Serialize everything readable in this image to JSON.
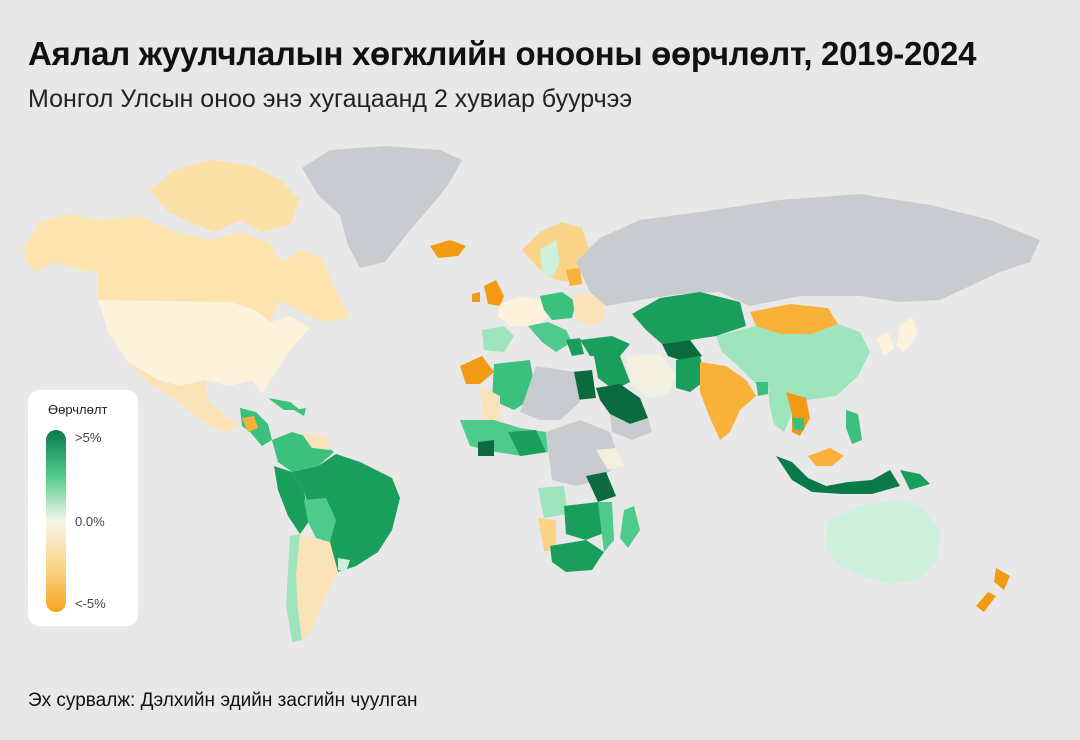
{
  "title": "Аялал жуулчлалын хөгжлийн онооны өөрчлөлт, 2019-2024",
  "subtitle": "Монгол Улсын оноо энэ хугацаанд 2 хувиар буурчээ",
  "legend": {
    "title": "Өөрчлөлт",
    "ticks": [
      ">5%",
      "0.0%",
      "<-5%"
    ],
    "colors": {
      "high": "#0b7a4b",
      "mid_high": "#4ecb8c",
      "mid": "#f6f6ea",
      "mid_low": "#fbd48a",
      "low": "#f7a51e"
    }
  },
  "source": "Эх сурвалж: Дэлхийн эдийн засгийн чуулган",
  "palette": {
    "background": "#e8e8e8",
    "no_data": "#c8ccd0",
    "dark_green": "#0b6b3f",
    "green": "#1a9e5c",
    "mid_green": "#3cc07e",
    "light_green": "#9ee5bd",
    "pale_green": "#ccf0dc",
    "neutral": "#f3f0df",
    "pale_yellow": "#fbe8bd",
    "light_yellow": "#fdd58a",
    "orange": "#f8b23a",
    "deep_orange": "#f29a14"
  }
}
